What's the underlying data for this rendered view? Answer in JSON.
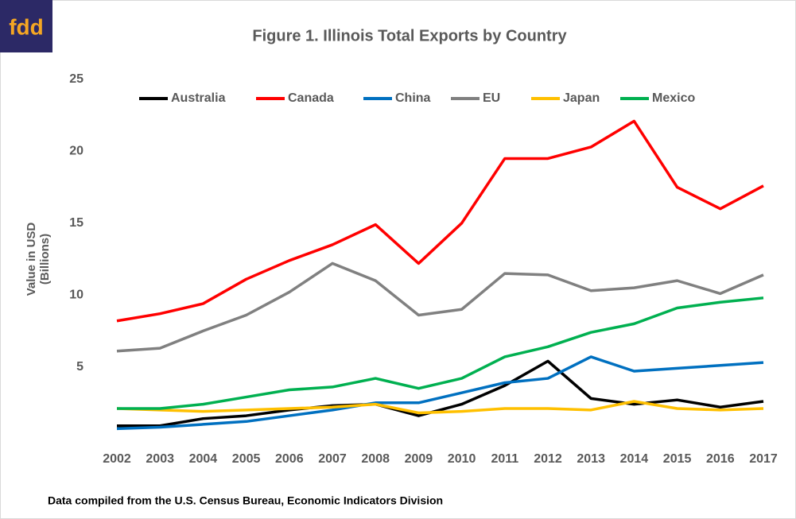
{
  "logo": "fdd",
  "source": "Data compiled from the U.S. Census Bureau, Economic Indicators Division",
  "chart_data": {
    "type": "line",
    "title": "Figure 1. Illinois Total Exports by Country",
    "y_label": [
      "Value in USD",
      "(Billions)"
    ],
    "categories": [
      "2002",
      "2003",
      "2004",
      "2005",
      "2006",
      "2007",
      "2008",
      "2009",
      "2010",
      "2011",
      "2012",
      "2013",
      "2014",
      "2015",
      "2016",
      "2017"
    ],
    "series": [
      {
        "name": "Australia",
        "color": "#000000",
        "values": [
          0.9,
          0.9,
          1.4,
          1.6,
          2.0,
          2.3,
          2.4,
          1.6,
          2.4,
          3.7,
          5.4,
          2.8,
          2.4,
          2.7,
          2.2,
          2.6
        ]
      },
      {
        "name": "Canada",
        "color": "#ff0000",
        "values": [
          8.2,
          8.7,
          9.4,
          11.1,
          12.4,
          13.5,
          14.9,
          12.2,
          15.0,
          19.5,
          19.5,
          20.3,
          22.1,
          17.5,
          16.0,
          17.6
        ]
      },
      {
        "name": "China",
        "color": "#0070c0",
        "values": [
          0.7,
          0.8,
          1.0,
          1.2,
          1.6,
          2.0,
          2.5,
          2.5,
          3.2,
          3.9,
          4.2,
          5.7,
          4.7,
          4.9,
          5.1,
          5.3
        ]
      },
      {
        "name": "EU",
        "color": "#808080",
        "values": [
          6.1,
          6.3,
          7.5,
          8.6,
          10.2,
          12.2,
          11.0,
          8.6,
          9.0,
          11.5,
          11.4,
          10.3,
          10.5,
          11.0,
          10.1,
          11.4
        ]
      },
      {
        "name": "Japan",
        "color": "#ffc000",
        "values": [
          2.1,
          2.0,
          1.9,
          2.0,
          2.1,
          2.2,
          2.4,
          1.8,
          1.9,
          2.1,
          2.1,
          2.0,
          2.6,
          2.1,
          2.0,
          2.1
        ]
      },
      {
        "name": "Mexico",
        "color": "#00b050",
        "values": [
          2.1,
          2.1,
          2.4,
          2.9,
          3.4,
          3.6,
          4.2,
          3.5,
          4.2,
          5.7,
          6.4,
          7.4,
          8.0,
          9.1,
          9.5,
          9.8
        ]
      }
    ],
    "ylim": [
      0,
      25
    ],
    "yticks": [
      5,
      10,
      15,
      20,
      25
    ],
    "grid": false,
    "legend": "top"
  }
}
